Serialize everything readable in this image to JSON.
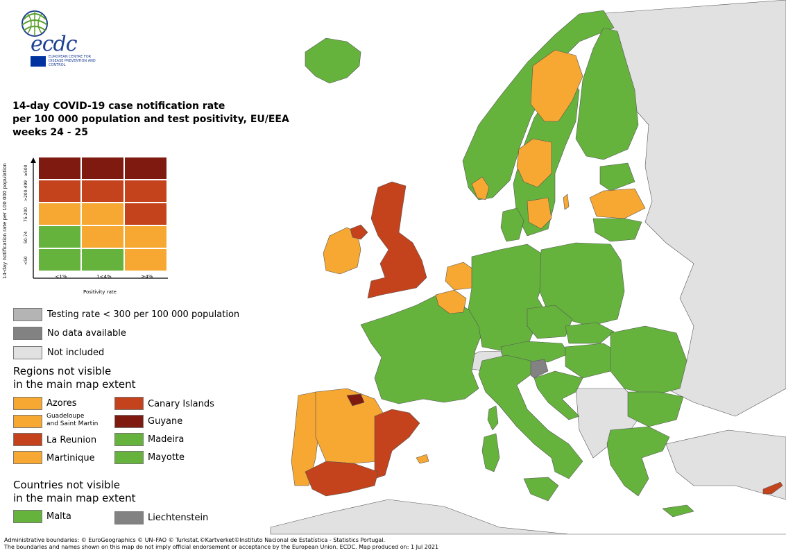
{
  "logo": {
    "text": "ecdc",
    "subtitle": "EUROPEAN CENTRE FOR DISEASE PREVENTION AND CONTROL"
  },
  "title": {
    "line1": "14-day COVID-19 case notification rate",
    "line2": "per 100 000 population and test positivity, EU/EEA",
    "line3": "weeks 24 - 25"
  },
  "matrix": {
    "ylabel": "14-day notification rate per 100 000 population",
    "xlabel": "Positivity rate",
    "row_labels": [
      "≥500",
      ">200-499",
      "75-200",
      "50-74",
      "<50"
    ],
    "col_labels": [
      "<1%",
      "1<4%",
      "≥4%"
    ],
    "colors": [
      [
        "#7f1a10",
        "#7f1a10",
        "#7f1a10"
      ],
      [
        "#c4421c",
        "#c4421c",
        "#c4421c"
      ],
      [
        "#f6a832",
        "#f6a832",
        "#c4421c"
      ],
      [
        "#65b33d",
        "#f6a832",
        "#f6a832"
      ],
      [
        "#65b33d",
        "#65b33d",
        "#f6a832"
      ]
    ]
  },
  "legend": {
    "testing": "Testing rate < 300 per 100 000 population",
    "nodata": "No data available",
    "notincluded": "Not included",
    "regions_heading1": "Regions not visible",
    "regions_heading2": "in the main map extent",
    "regions": {
      "azores": "Azores",
      "guadeloupe1": "Guadeloupe",
      "guadeloupe2": "and Saint Martin",
      "reunion": "La Reunion",
      "martinique": "Martinique",
      "canary": "Canary Islands",
      "guyane": "Guyane",
      "madeira": "Madeira",
      "mayotte": "Mayotte"
    },
    "countries_heading1": "Countries not visible",
    "countries_heading2": "in the main map extent",
    "countries": {
      "malta": "Malta",
      "liechtenstein": "Liechtenstein"
    }
  },
  "colors": {
    "green": "#65b33d",
    "orange": "#f6a832",
    "red": "#c4421c",
    "darkred": "#7f1a10",
    "grey_testing": "#b4b4b4",
    "grey_nodata": "#828282",
    "grey_notincluded": "#e1e1e1",
    "sea": "#ffffff"
  },
  "footer": {
    "line1": "Administrative boundaries: © EuroGeographics © UN–FAO © Turkstat.©Kartverket©Instituto Nacional de Estatística - Statistics Portugal.",
    "line2": "The boundaries and names shown on this map do not imply official endorsement or acceptance by the European Union. ECDC. Map produced on: 1 Jul 2021"
  }
}
